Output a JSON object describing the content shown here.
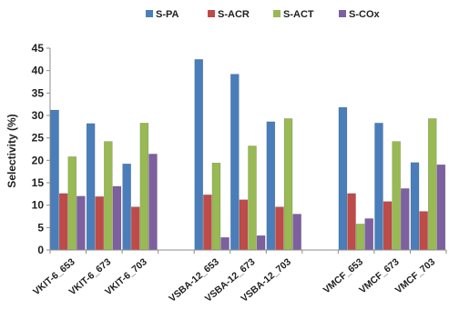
{
  "chart_data": {
    "type": "bar",
    "title": "",
    "ylabel": "Selectivity  (%)",
    "xlabel": "",
    "ylim": [
      0,
      45
    ],
    "yticks": [
      0,
      5,
      10,
      15,
      20,
      25,
      30,
      35,
      40,
      45
    ],
    "grid": false,
    "legend_position": "top",
    "categories": [
      "VKIT-6_653",
      "VKIT-6_673",
      "VKIT-6_703",
      "VSBA-12_653",
      "VSBA-12_673",
      "VSBA-12_703",
      "VMCF_653",
      "VMCF_673",
      "VMCF_703"
    ],
    "groups": [
      [
        "VKIT-6_653",
        "VKIT-6_673",
        "VKIT-6_703"
      ],
      [
        "VSBA-12_653",
        "VSBA-12_673",
        "VSBA-12_703"
      ],
      [
        "VMCF_653",
        "VMCF_673",
        "VMCF_703"
      ]
    ],
    "series": [
      {
        "name": "S-PA",
        "color": "#4a7ebb",
        "values": [
          31.2,
          28.2,
          19.2,
          42.5,
          39.2,
          28.6,
          31.8,
          28.3,
          19.5
        ]
      },
      {
        "name": "S-ACR",
        "color": "#be4b48",
        "values": [
          12.6,
          11.9,
          9.6,
          12.3,
          11.2,
          9.6,
          12.6,
          10.8,
          8.6
        ]
      },
      {
        "name": "S-ACT",
        "color": "#98b954",
        "values": [
          20.8,
          24.2,
          28.3,
          19.4,
          23.2,
          29.3,
          5.8,
          24.2,
          29.3
        ]
      },
      {
        "name": "S-COx",
        "color": "#7d60a0",
        "values": [
          12.0,
          14.2,
          21.4,
          2.8,
          3.2,
          8.0,
          7.0,
          13.7,
          19.0
        ]
      }
    ]
  }
}
